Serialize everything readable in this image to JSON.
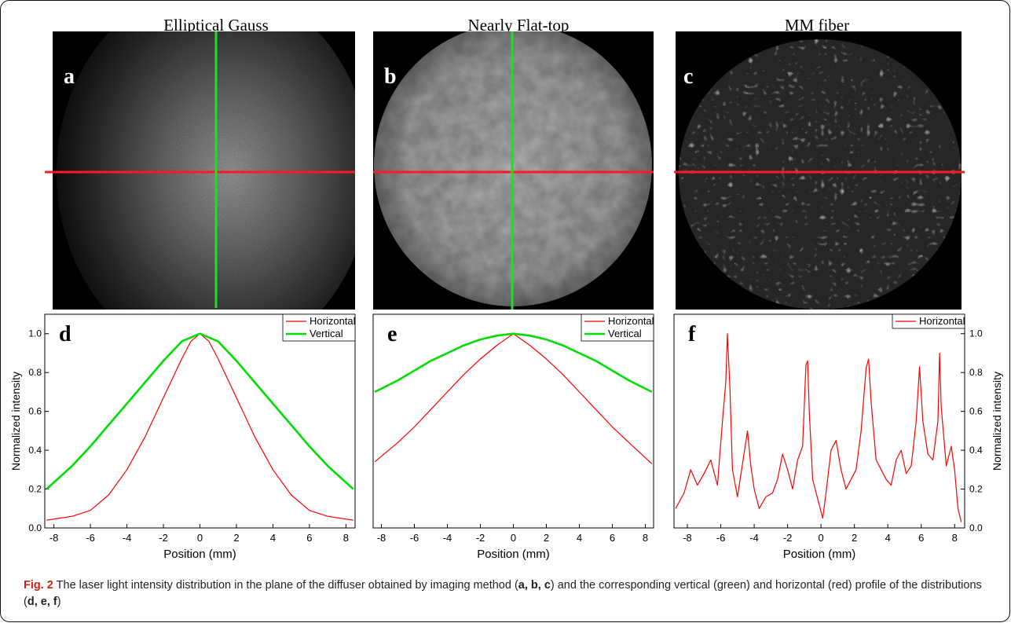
{
  "columns": [
    {
      "title": "Elliptical Gauss",
      "image_label": "a",
      "plot_label": "d"
    },
    {
      "title": "Nearly Flat-top",
      "image_label": "b",
      "plot_label": "e"
    },
    {
      "title": "MM fiber",
      "image_label": "c",
      "plot_label": "f"
    }
  ],
  "colors": {
    "horizontal": "#ff0000",
    "vertical": "#00dd00"
  },
  "caption": {
    "fig": "Fig. 2",
    "part1": " The laser light intensity distribution in the plane of the diffuser obtained by imaging method (",
    "bold1": "a, b, c",
    "part2": ") and the corresponding vertical (green) and horizontal (red) profile of the distributions (",
    "bold2": "d, e, f",
    "part3": ")"
  },
  "chart_data": [
    {
      "type": "line",
      "label": "d",
      "xlabel": "Position (mm)",
      "ylabel": "Normalized intensity",
      "xlim": [
        -8.5,
        8.5
      ],
      "ylim": [
        0,
        1.1
      ],
      "xticks": [
        -8,
        -6,
        -4,
        -2,
        0,
        2,
        4,
        6,
        8
      ],
      "yticks": [
        0.0,
        0.2,
        0.4,
        0.6,
        0.8,
        1.0
      ],
      "legend": "top-right",
      "series": [
        {
          "name": "Horizontal",
          "x": [
            -8.4,
            -7,
            -6,
            -5,
            -4,
            -3,
            -2,
            -1,
            -0.5,
            0,
            0.5,
            1,
            2,
            3,
            4,
            5,
            6,
            7,
            8.4
          ],
          "y": [
            0.04,
            0.06,
            0.09,
            0.17,
            0.3,
            0.47,
            0.67,
            0.87,
            0.96,
            1.0,
            0.96,
            0.87,
            0.67,
            0.47,
            0.3,
            0.17,
            0.09,
            0.06,
            0.04
          ]
        },
        {
          "name": "Vertical",
          "x": [
            -8.4,
            -7,
            -6,
            -5,
            -4,
            -3,
            -2,
            -1,
            0,
            1,
            2,
            3,
            4,
            5,
            6,
            7,
            8.4
          ],
          "y": [
            0.2,
            0.32,
            0.42,
            0.53,
            0.64,
            0.75,
            0.86,
            0.96,
            1.0,
            0.96,
            0.86,
            0.75,
            0.64,
            0.53,
            0.42,
            0.32,
            0.2
          ]
        }
      ]
    },
    {
      "type": "line",
      "label": "e",
      "xlabel": "Position (mm)",
      "ylabel": "",
      "xlim": [
        -8.5,
        8.5
      ],
      "ylim": [
        0,
        1.1
      ],
      "xticks": [
        -8,
        -6,
        -4,
        -2,
        0,
        2,
        4,
        6,
        8
      ],
      "yticks": [],
      "legend": "top-right",
      "series": [
        {
          "name": "Horizontal",
          "x": [
            -8.4,
            -7,
            -6,
            -5,
            -4,
            -3,
            -2,
            -1,
            0,
            1,
            2,
            3,
            4,
            5,
            6,
            7,
            8.4
          ],
          "y": [
            0.34,
            0.44,
            0.52,
            0.61,
            0.7,
            0.79,
            0.87,
            0.94,
            1.0,
            0.94,
            0.87,
            0.79,
            0.7,
            0.61,
            0.52,
            0.44,
            0.33
          ]
        },
        {
          "name": "Vertical",
          "x": [
            -8.4,
            -7,
            -6,
            -5,
            -4,
            -3,
            -2,
            -1,
            0,
            1,
            2,
            3,
            4,
            5,
            6,
            7,
            8.4
          ],
          "y": [
            0.7,
            0.76,
            0.81,
            0.86,
            0.9,
            0.94,
            0.97,
            0.99,
            1.0,
            0.99,
            0.97,
            0.94,
            0.9,
            0.86,
            0.81,
            0.76,
            0.7
          ]
        }
      ]
    },
    {
      "type": "line",
      "label": "f",
      "xlabel": "Position (mm)",
      "ylabel": "Normalized intensity",
      "ylabel_side": "right",
      "xlim": [
        -8.8,
        8.6
      ],
      "ylim": [
        0,
        1.1
      ],
      "xticks": [
        -8,
        -6,
        -4,
        -2,
        0,
        2,
        4,
        6,
        8
      ],
      "yticks": [
        0.0,
        0.2,
        0.4,
        0.6,
        0.8,
        1.0
      ],
      "legend": "top-right",
      "series": [
        {
          "name": "Horizontal",
          "x": [
            -8.7,
            -8.2,
            -7.8,
            -7.4,
            -7.0,
            -6.6,
            -6.2,
            -5.9,
            -5.7,
            -5.6,
            -5.45,
            -5.3,
            -5.0,
            -4.7,
            -4.4,
            -4.2,
            -4.0,
            -3.7,
            -3.3,
            -2.9,
            -2.6,
            -2.3,
            -2.0,
            -1.7,
            -1.4,
            -1.1,
            -0.9,
            -0.8,
            -0.7,
            -0.5,
            -0.2,
            0.1,
            0.3,
            0.6,
            0.9,
            1.2,
            1.5,
            1.8,
            2.1,
            2.4,
            2.7,
            2.85,
            3.0,
            3.3,
            3.6,
            3.9,
            4.2,
            4.5,
            4.8,
            5.1,
            5.4,
            5.7,
            5.9,
            6.1,
            6.4,
            6.7,
            7.0,
            7.1,
            7.2,
            7.5,
            7.8,
            8.0,
            8.2,
            8.4
          ],
          "y": [
            0.1,
            0.18,
            0.3,
            0.22,
            0.28,
            0.35,
            0.22,
            0.55,
            0.75,
            1.0,
            0.72,
            0.3,
            0.16,
            0.33,
            0.5,
            0.32,
            0.2,
            0.1,
            0.16,
            0.18,
            0.25,
            0.38,
            0.3,
            0.2,
            0.35,
            0.42,
            0.84,
            0.86,
            0.6,
            0.25,
            0.15,
            0.05,
            0.18,
            0.4,
            0.45,
            0.3,
            0.2,
            0.25,
            0.3,
            0.5,
            0.82,
            0.87,
            0.65,
            0.35,
            0.3,
            0.25,
            0.22,
            0.35,
            0.4,
            0.28,
            0.32,
            0.55,
            0.83,
            0.55,
            0.38,
            0.35,
            0.55,
            0.9,
            0.62,
            0.32,
            0.42,
            0.3,
            0.1,
            0.03
          ]
        }
      ]
    }
  ]
}
